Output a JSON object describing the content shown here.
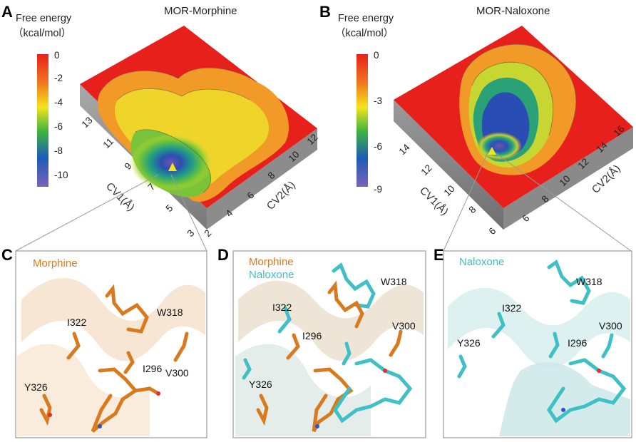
{
  "panels": {
    "A": {
      "letter": "A",
      "title": "MOR-Morphine",
      "colorbar": {
        "title_line1": "Free energy",
        "title_line2": "（kcal/mol）",
        "ticks": [
          "0",
          "-2",
          "-4",
          "-6",
          "-8",
          "-10"
        ]
      },
      "cv1": {
        "label": "CV1(Å)",
        "ticks": [
          "13",
          "11",
          "9",
          "7",
          "5",
          "3"
        ]
      },
      "cv2": {
        "label": "CV2(Å)",
        "ticks": [
          "2",
          "4",
          "6",
          "8",
          "10",
          "12"
        ]
      }
    },
    "B": {
      "letter": "B",
      "title": "MOR-Naloxone",
      "colorbar": {
        "title_line1": "Free energy",
        "title_line2": "（kcal/mol）",
        "ticks": [
          "0",
          "-3",
          "-6",
          "-9"
        ]
      },
      "cv1": {
        "label": "CV1(Å)",
        "ticks": [
          "14",
          "12",
          "10",
          "8",
          "6"
        ]
      },
      "cv2": {
        "label": "CV2(Å)",
        "ticks": [
          "6",
          "8",
          "10",
          "12",
          "14",
          "16"
        ]
      }
    },
    "C": {
      "letter": "C",
      "ligand": "Morphine",
      "residues": [
        "W318",
        "I322",
        "I296",
        "V300",
        "Y326"
      ]
    },
    "D": {
      "letter": "D",
      "ligand1": "Morphine",
      "ligand2": "Naloxone",
      "residues": [
        "W318",
        "I322",
        "I296",
        "V300",
        "Y326"
      ]
    },
    "E": {
      "letter": "E",
      "ligand": "Naloxone",
      "residues": [
        "W318",
        "I322",
        "I296",
        "V300",
        "Y326"
      ]
    }
  },
  "colors": {
    "orange_ligand": "#e07a1c",
    "cyan_ligand": "#3fbfc6",
    "surface_max": "#e8201c",
    "surface_min": "#6a55b0"
  }
}
